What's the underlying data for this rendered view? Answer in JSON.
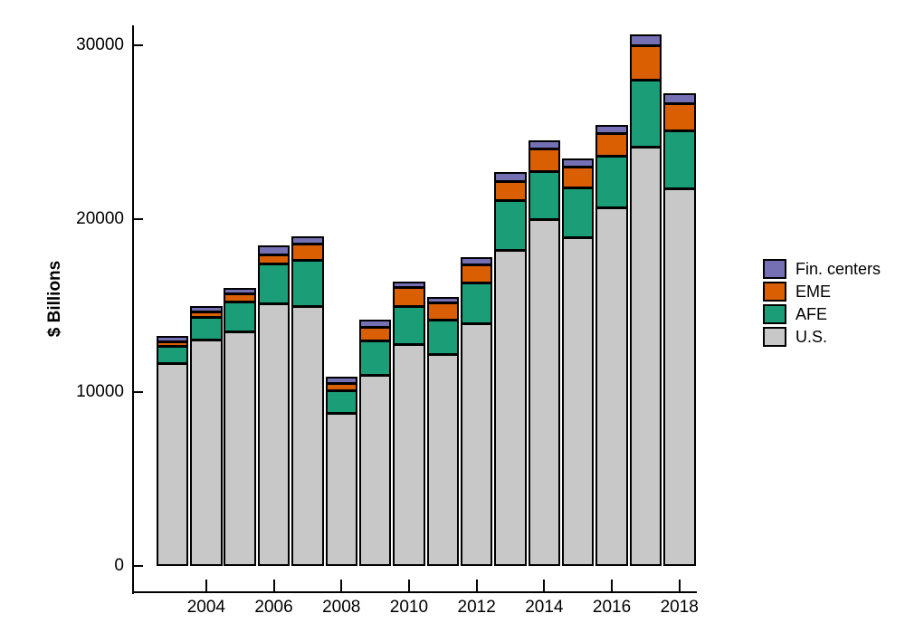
{
  "chart_data": {
    "type": "bar",
    "stacked": true,
    "title": "",
    "xlabel": "",
    "ylabel": "$ Billions",
    "ylim": [
      0,
      32600
    ],
    "ytick_values": [
      0,
      10000,
      20000,
      30000
    ],
    "ytick_labels": [
      "0",
      "10000",
      "20000",
      "30000"
    ],
    "categories": [
      "2003",
      "2004",
      "2005",
      "2006",
      "2007",
      "2008",
      "2009",
      "2010",
      "2011",
      "2012",
      "2013",
      "2014",
      "2015",
      "2016",
      "2017",
      "2018"
    ],
    "xtick_labels": [
      "2004",
      "2006",
      "2008",
      "2010",
      "2012",
      "2014",
      "2016",
      "2018"
    ],
    "grid": false,
    "legend_position": "right-middle",
    "bar_outline_color": "#000000",
    "background_color": "#ffffff",
    "series": [
      {
        "name": "U.S.",
        "color": "#c8c8c8",
        "values": [
          11700,
          13050,
          13500,
          15130,
          15000,
          8800,
          11030,
          12760,
          12200,
          13980,
          18220,
          19970,
          18950,
          20670,
          24150,
          21770
        ]
      },
      {
        "name": "AFE",
        "color": "#1b9e77",
        "values": [
          1000,
          1310,
          1710,
          2300,
          2620,
          1310,
          1950,
          2230,
          1970,
          2360,
          2880,
          2800,
          2840,
          2960,
          3880,
          3300
        ]
      },
      {
        "name": "EME",
        "color": "#d95f02",
        "values": [
          260,
          300,
          470,
          520,
          960,
          440,
          790,
          1100,
          1000,
          1010,
          1050,
          1260,
          1230,
          1310,
          1970,
          1590
        ]
      },
      {
        "name": "Fin. centers",
        "color": "#7570b3",
        "values": [
          300,
          330,
          350,
          520,
          430,
          350,
          430,
          300,
          350,
          440,
          520,
          490,
          440,
          490,
          610,
          560
        ]
      }
    ],
    "stack_order_bottom_to_top": [
      "U.S.",
      "AFE",
      "EME",
      "Fin. centers"
    ],
    "totals": [
      13260,
      14990,
      16030,
      18470,
      19010,
      10900,
      14200,
      16390,
      15520,
      17790,
      22670,
      24520,
      23460,
      25430,
      30610,
      27220
    ],
    "legend": [
      {
        "label": "Fin. centers",
        "color": "#7570b3"
      },
      {
        "label": "EME",
        "color": "#d95f02"
      },
      {
        "label": "AFE",
        "color": "#1b9e77"
      },
      {
        "label": "U.S.",
        "color": "#c8c8c8"
      }
    ]
  }
}
